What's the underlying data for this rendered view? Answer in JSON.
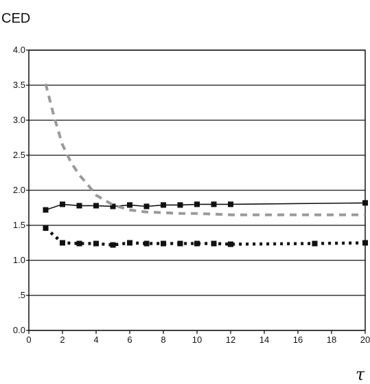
{
  "chart_data": {
    "type": "line",
    "ylabel": "CED",
    "xlabel": "τ",
    "xlim": [
      0,
      20
    ],
    "ylim": [
      0.0,
      4.0
    ],
    "x_ticks": [
      "0",
      "2",
      "4",
      "6",
      "8",
      "10",
      "12",
      "14",
      "16",
      "18",
      "20"
    ],
    "y_ticks": [
      "0.0",
      ".5",
      "1.0",
      "1.5",
      "2.0",
      "2.5",
      "3.0",
      "3.5",
      "4.0"
    ],
    "y_tick_values": [
      0.0,
      0.5,
      1.0,
      1.5,
      2.0,
      2.5,
      3.0,
      3.5,
      4.0
    ],
    "grid": "horizontal",
    "series": [
      {
        "style": "solid",
        "marker": "square",
        "color": "#111111",
        "points": [
          [
            1,
            1.72
          ],
          [
            2,
            1.8
          ],
          [
            3,
            1.78
          ],
          [
            4,
            1.78
          ],
          [
            5,
            1.77
          ],
          [
            6,
            1.79
          ],
          [
            7,
            1.77
          ],
          [
            8,
            1.79
          ],
          [
            9,
            1.79
          ],
          [
            10,
            1.8
          ],
          [
            11,
            1.8
          ],
          [
            12,
            1.8
          ],
          [
            20,
            1.82
          ]
        ]
      },
      {
        "style": "dotted",
        "marker": "square",
        "color": "#111111",
        "points": [
          [
            1,
            1.46
          ],
          [
            2,
            1.25
          ],
          [
            3,
            1.24
          ],
          [
            4,
            1.24
          ],
          [
            5,
            1.22
          ],
          [
            6,
            1.25
          ],
          [
            7,
            1.24
          ],
          [
            8,
            1.24
          ],
          [
            9,
            1.24
          ],
          [
            10,
            1.24
          ],
          [
            11,
            1.24
          ],
          [
            12,
            1.23
          ],
          [
            17,
            1.24
          ],
          [
            20,
            1.25
          ]
        ]
      },
      {
        "style": "dashed",
        "marker": "none",
        "color": "#9a9a9a",
        "points": [
          [
            1,
            3.52
          ],
          [
            1.5,
            3.05
          ],
          [
            2,
            2.65
          ],
          [
            2.5,
            2.4
          ],
          [
            3,
            2.22
          ],
          [
            3.5,
            2.08
          ],
          [
            4,
            1.93
          ],
          [
            5,
            1.79
          ],
          [
            6,
            1.72
          ],
          [
            7,
            1.69
          ],
          [
            8,
            1.68
          ],
          [
            9,
            1.67
          ],
          [
            10,
            1.67
          ],
          [
            11,
            1.66
          ],
          [
            12,
            1.65
          ],
          [
            14,
            1.65
          ],
          [
            16,
            1.65
          ],
          [
            18,
            1.65
          ],
          [
            20,
            1.65
          ]
        ]
      }
    ]
  }
}
